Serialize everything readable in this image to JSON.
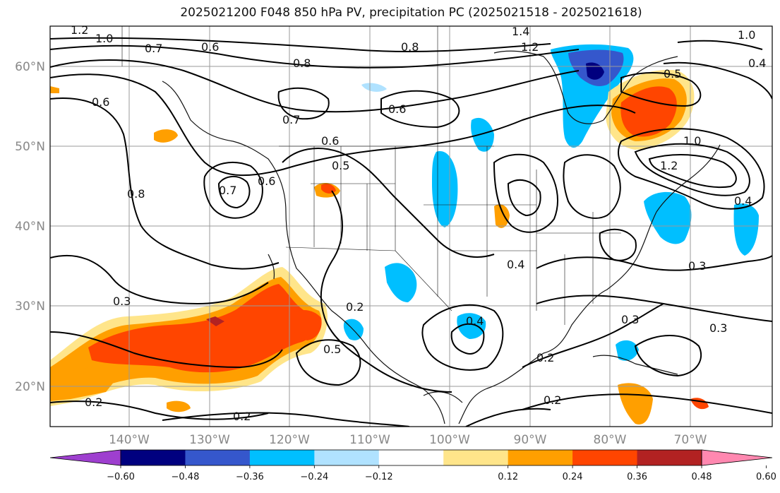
{
  "title": "2025021200 F048 850 hPa PV, precipitation PC (2025021518 - 2025021618)",
  "lat_labels": [
    "60°N",
    "50°N",
    "40°N",
    "30°N",
    "20°N"
  ],
  "lon_labels": [
    "140°W",
    "130°W",
    "120°W",
    "110°W",
    "100°W",
    "90°W",
    "80°W",
    "70°W"
  ],
  "contour_labels": [
    "1.2",
    "1.0",
    "0.7",
    "0.6",
    "0.8",
    "1.4",
    "1.2",
    "1.0",
    "0.8",
    "0.6",
    "0.7",
    "0.6",
    "0.5",
    "0.7",
    "0.6",
    "0.8",
    "0.4",
    "0.4",
    "0.3",
    "0.3",
    "0.2",
    "0.5",
    "0.2",
    "0.2",
    "0.4",
    "0.2",
    "0.3",
    "0.3",
    "0.2",
    "0.6",
    "0.5",
    "1.0",
    "1.2",
    "0.4"
  ],
  "colorbar": {
    "ticks": [
      "−0.60",
      "−0.48",
      "−0.36",
      "−0.24",
      "−0.12",
      "0.12",
      "0.24",
      "0.36",
      "0.48",
      "0.60"
    ],
    "colors": [
      "#9e3fcf",
      "#00007f",
      "#3557cc",
      "#00bfff",
      "#b0e2ff",
      "#ffffff",
      "#ffe58a",
      "#ff9f00",
      "#ff4500",
      "#b22222",
      "#ff88b0"
    ]
  },
  "colors": {
    "blue": "#00bfff",
    "light_blue": "#b0e2ff",
    "mid_blue": "#3557cc",
    "dark_blue": "#00007f",
    "yellow": "#ffe58a",
    "orange": "#ff9f00",
    "red_orange": "#ff4500",
    "dark_red": "#b22222"
  }
}
